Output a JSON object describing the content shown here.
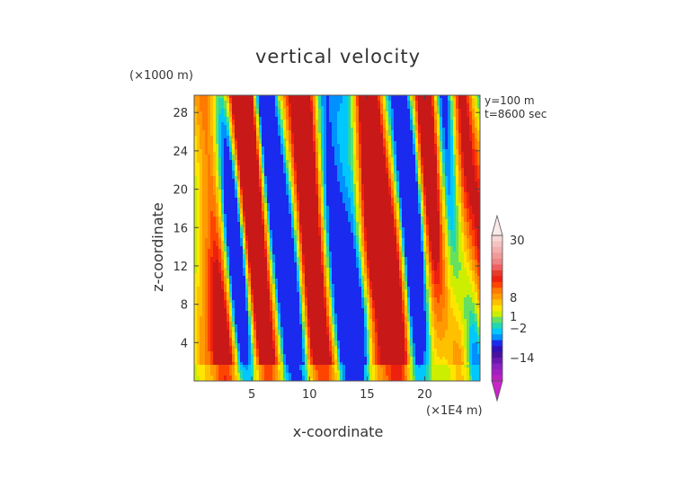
{
  "chart_data": {
    "type": "heatmap",
    "title": "vertical velocity",
    "xlabel": "x-coordinate",
    "ylabel": "z-coordinate",
    "x_unit_label": "(×1E4 m)",
    "y_unit_label": "(×1000 m)",
    "annotations": [
      "y=100  m",
      "t=8600 sec"
    ],
    "xlim": [
      0,
      24.8
    ],
    "ylim": [
      0,
      29.8
    ],
    "x_ticks": [
      5,
      10,
      15,
      20
    ],
    "y_ticks": [
      4,
      8,
      12,
      16,
      20,
      24,
      28
    ],
    "colorbar": {
      "labels": [
        {
          "value": 30,
          "text": "30"
        },
        {
          "value": 8,
          "text": "8"
        },
        {
          "value": 1,
          "text": "1"
        },
        {
          "value": -2,
          "text": "−2"
        },
        {
          "value": -14,
          "text": "−14"
        }
      ],
      "colors": [
        "#f7d8d8",
        "#f5c2c2",
        "#f3aeae",
        "#f09a9a",
        "#ee8484",
        "#f06060",
        "#e83a2a",
        "#ee2010",
        "#ff4400",
        "#ff7a00",
        "#ff9a00",
        "#ffc000",
        "#ffe600",
        "#ccee00",
        "#66e060",
        "#22d8b0",
        "#00c8ff",
        "#0090ff",
        "#1a2aee",
        "#3010b8",
        "#4a10a0",
        "#6818b0",
        "#8a20c0",
        "#a020c0",
        "#bb20c0"
      ]
    },
    "field_description": "turbulent vertical-velocity field; orange/red updraft columns, blue/purple downdraft columns, yellow-green background; strongest updrafts near x≈13–16, low z"
  }
}
